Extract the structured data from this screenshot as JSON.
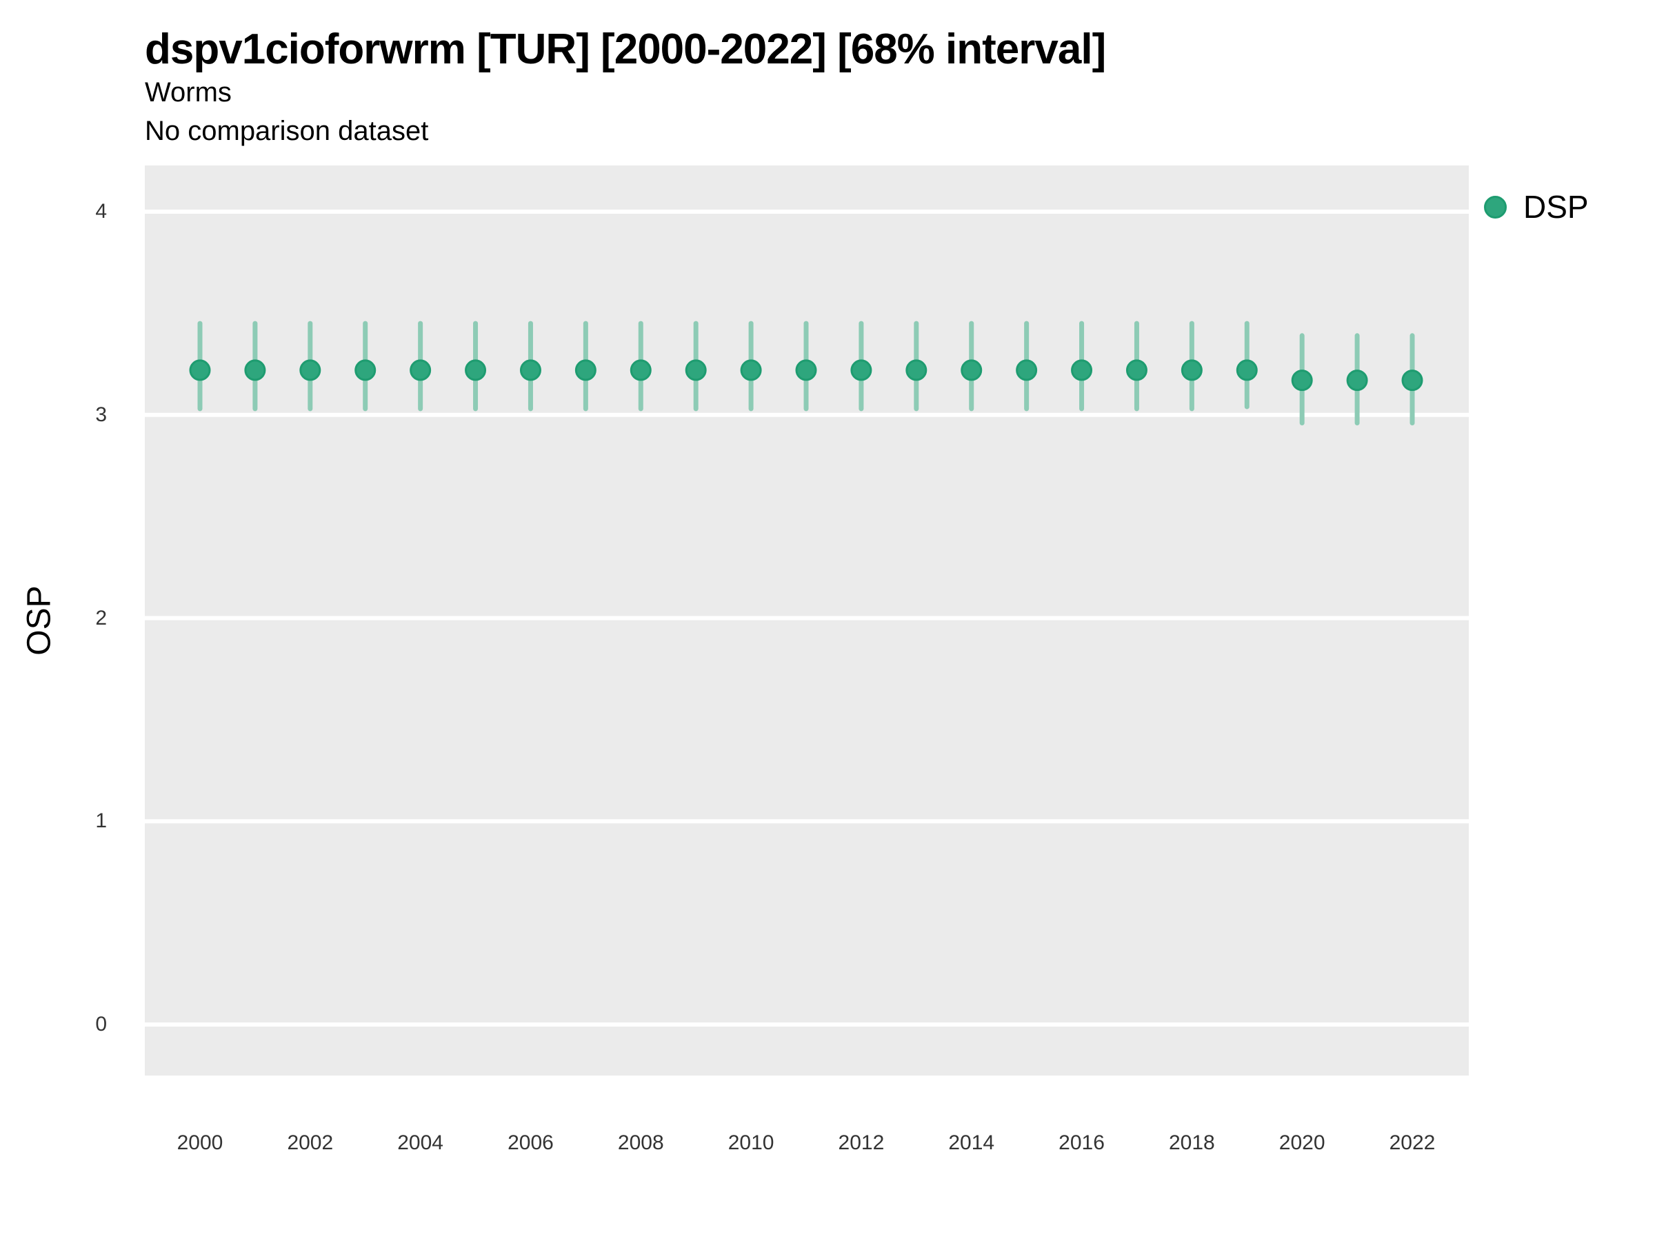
{
  "chart_data": {
    "type": "scatter",
    "title": "dspv1cioforwrm [TUR] [2000-2022] [68% interval]",
    "subtitle": "Worms",
    "note": "No comparison dataset",
    "ylabel": "OSP",
    "xlabel": "",
    "legend_position": "right",
    "grid": "major-y-only",
    "panel_bg": "#EBEBEB",
    "gridline_color": "#FFFFFF",
    "tick_label_color": "#333333",
    "xlim": [
      1999,
      2023
    ],
    "ylim": [
      -0.25,
      4.23
    ],
    "x_ticks": [
      "2000",
      "2002",
      "2004",
      "2006",
      "2008",
      "2010",
      "2012",
      "2014",
      "2016",
      "2018",
      "2020",
      "2022"
    ],
    "y_ticks": [
      "0",
      "1",
      "2",
      "3",
      "4"
    ],
    "series": [
      {
        "name": "DSP",
        "interval": "68%",
        "point_color": "#2EA67D",
        "point_edge_color": "#1E9C70",
        "interval_color": "#8DCBB5",
        "points": [
          {
            "x": 2000,
            "y": 3.22,
            "low": 3.03,
            "high": 3.45
          },
          {
            "x": 2001,
            "y": 3.22,
            "low": 3.03,
            "high": 3.45
          },
          {
            "x": 2002,
            "y": 3.22,
            "low": 3.03,
            "high": 3.45
          },
          {
            "x": 2003,
            "y": 3.22,
            "low": 3.03,
            "high": 3.45
          },
          {
            "x": 2004,
            "y": 3.22,
            "low": 3.03,
            "high": 3.45
          },
          {
            "x": 2005,
            "y": 3.22,
            "low": 3.03,
            "high": 3.45
          },
          {
            "x": 2006,
            "y": 3.22,
            "low": 3.03,
            "high": 3.45
          },
          {
            "x": 2007,
            "y": 3.22,
            "low": 3.03,
            "high": 3.45
          },
          {
            "x": 2008,
            "y": 3.22,
            "low": 3.03,
            "high": 3.45
          },
          {
            "x": 2009,
            "y": 3.22,
            "low": 3.03,
            "high": 3.45
          },
          {
            "x": 2010,
            "y": 3.22,
            "low": 3.03,
            "high": 3.45
          },
          {
            "x": 2011,
            "y": 3.22,
            "low": 3.03,
            "high": 3.45
          },
          {
            "x": 2012,
            "y": 3.22,
            "low": 3.03,
            "high": 3.45
          },
          {
            "x": 2013,
            "y": 3.22,
            "low": 3.03,
            "high": 3.45
          },
          {
            "x": 2014,
            "y": 3.22,
            "low": 3.03,
            "high": 3.45
          },
          {
            "x": 2015,
            "y": 3.22,
            "low": 3.03,
            "high": 3.45
          },
          {
            "x": 2016,
            "y": 3.22,
            "low": 3.03,
            "high": 3.45
          },
          {
            "x": 2017,
            "y": 3.22,
            "low": 3.03,
            "high": 3.45
          },
          {
            "x": 2018,
            "y": 3.22,
            "low": 3.03,
            "high": 3.45
          },
          {
            "x": 2019,
            "y": 3.22,
            "low": 3.04,
            "high": 3.45
          },
          {
            "x": 2020,
            "y": 3.17,
            "low": 2.96,
            "high": 3.39
          },
          {
            "x": 2021,
            "y": 3.17,
            "low": 2.96,
            "high": 3.39
          },
          {
            "x": 2022,
            "y": 3.17,
            "low": 2.96,
            "high": 3.39
          }
        ]
      }
    ]
  }
}
